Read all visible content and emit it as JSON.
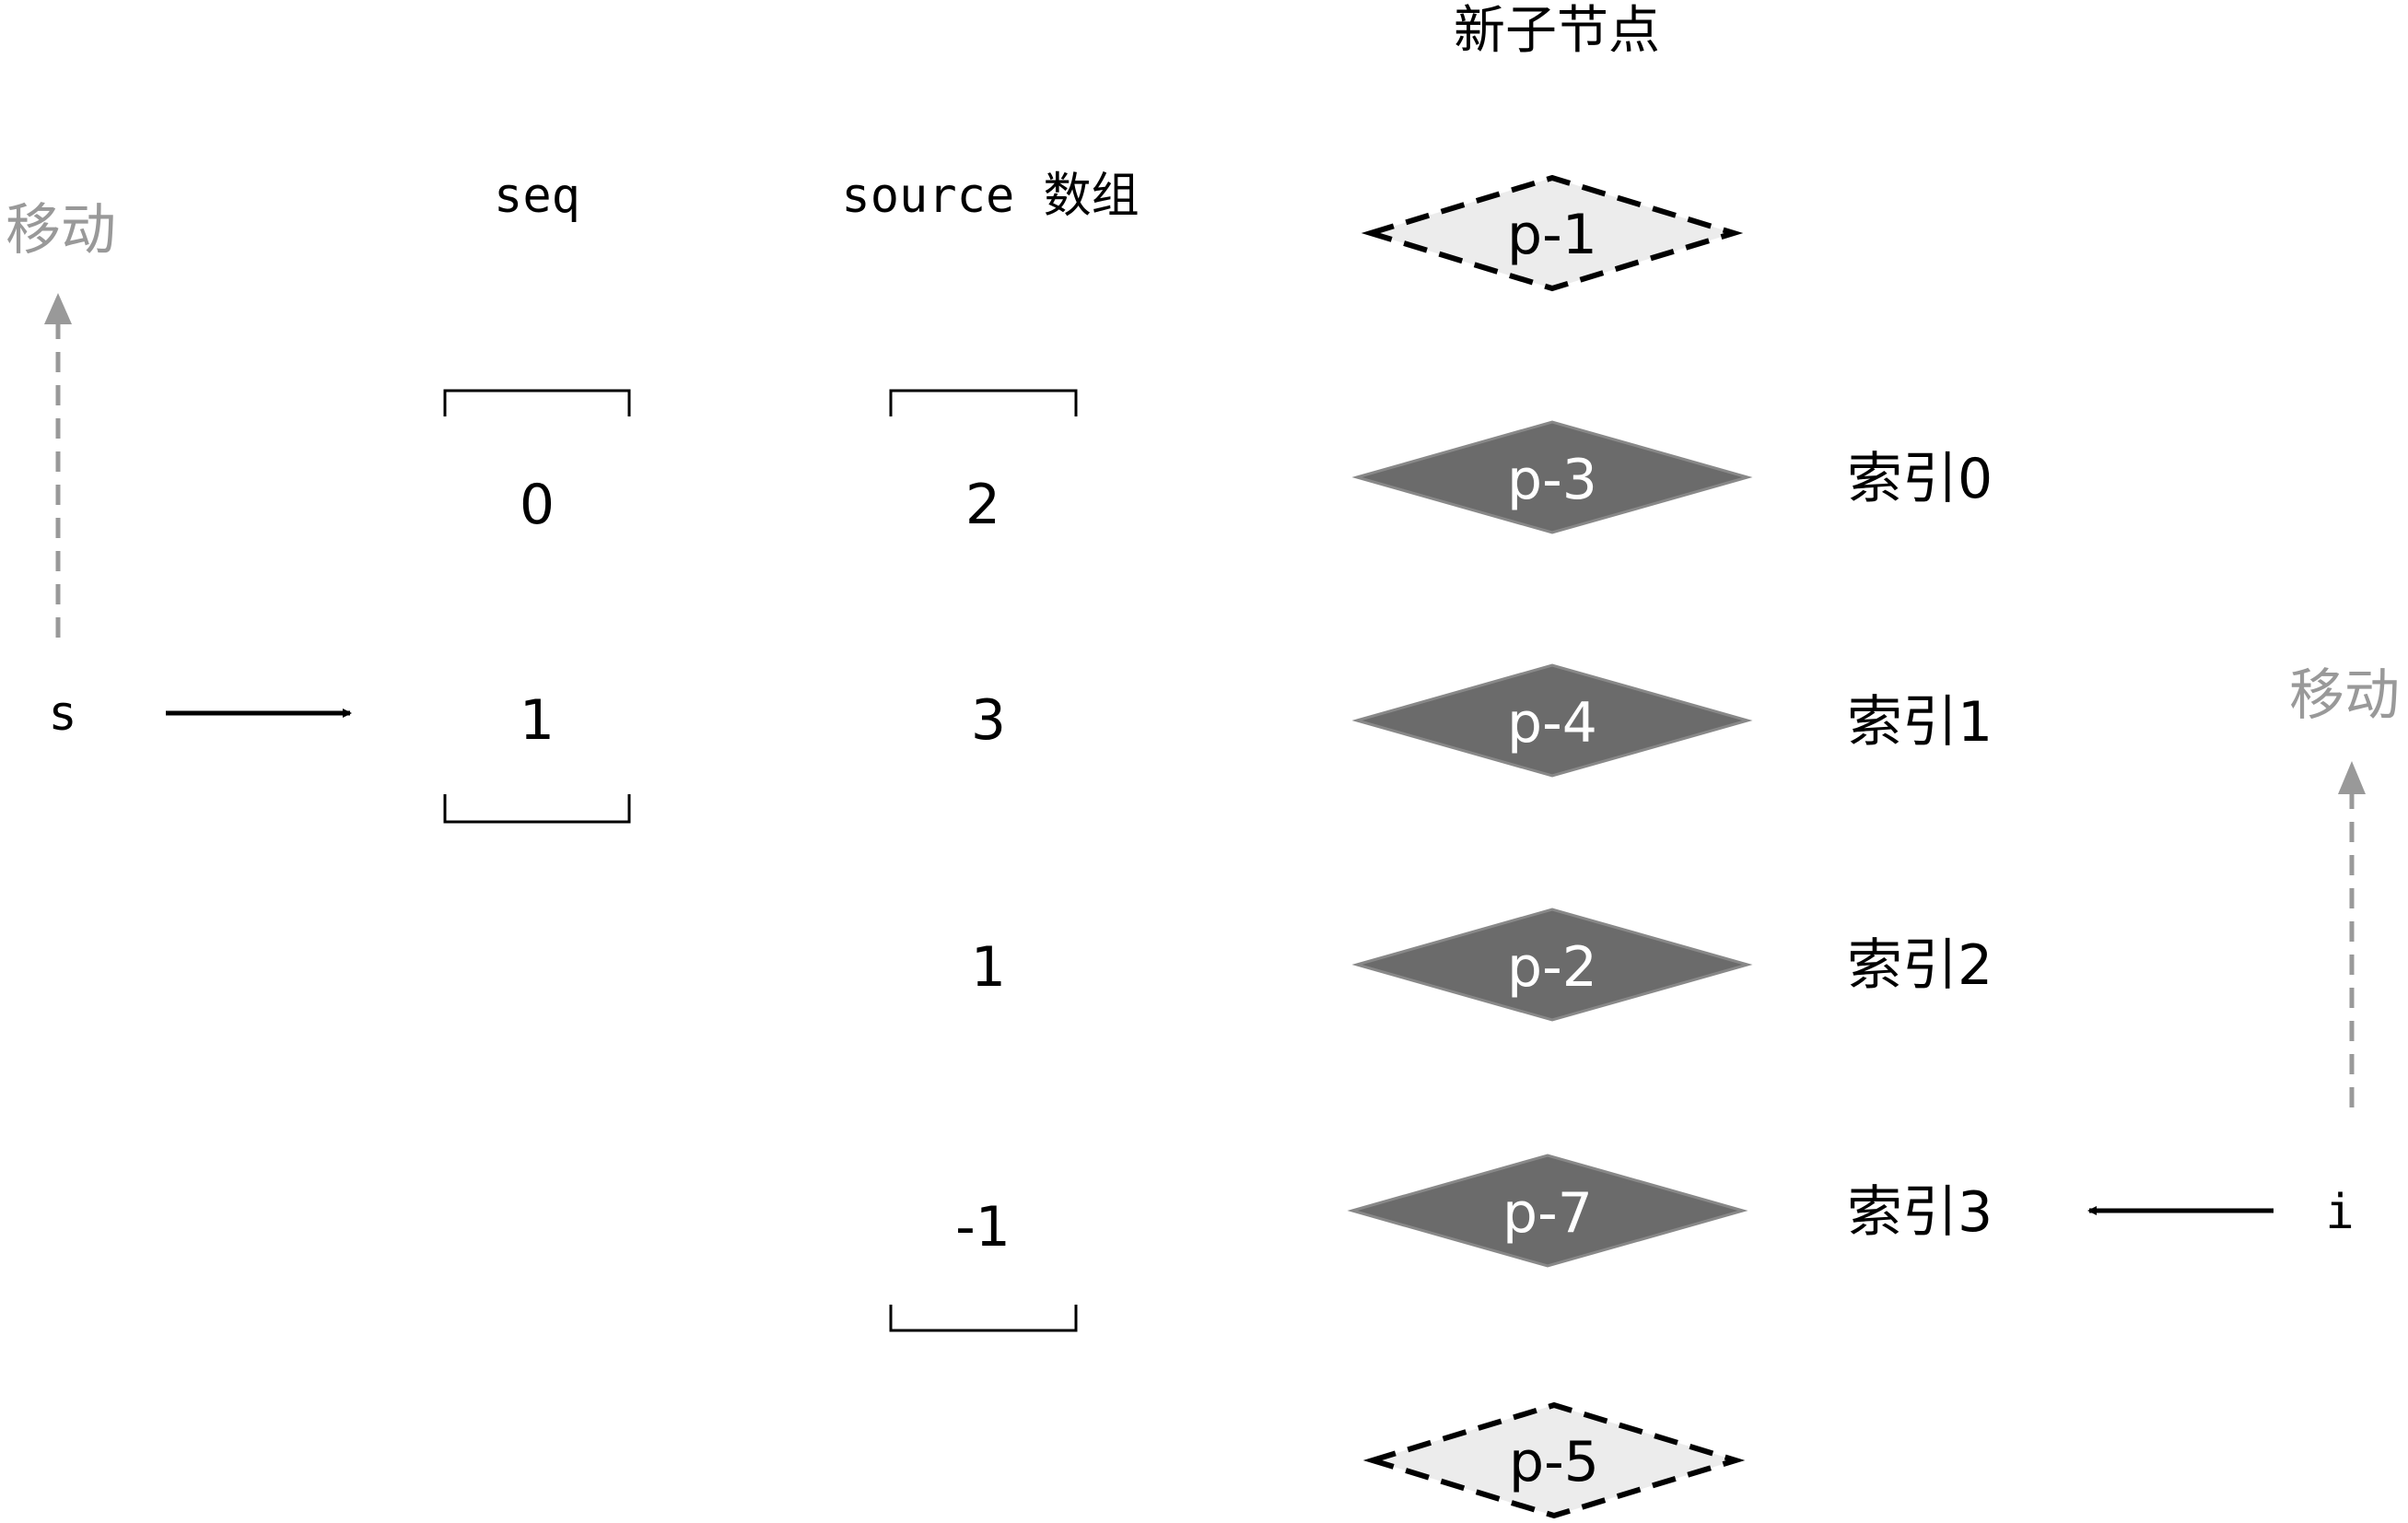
{
  "title": "新子节点",
  "seq": {
    "header": "seq",
    "values": [
      "0",
      "1"
    ]
  },
  "source": {
    "header": "source 数组",
    "values": [
      "2",
      "3",
      "1",
      "-1"
    ]
  },
  "nodes": [
    {
      "label": "p-1",
      "style": "dashed"
    },
    {
      "label": "p-3",
      "style": "solid"
    },
    {
      "label": "p-4",
      "style": "solid"
    },
    {
      "label": "p-2",
      "style": "solid"
    },
    {
      "label": "p-7",
      "style": "solid"
    },
    {
      "label": "p-5",
      "style": "dashed"
    }
  ],
  "indices": [
    "索引0",
    "索引1",
    "索引2",
    "索引3"
  ],
  "pointers": {
    "s": "s",
    "i": "i",
    "move_left": "移动",
    "move_right": "移动"
  },
  "colors": {
    "solid_fill": "#6b6b6b",
    "dashed_fill": "#ececec",
    "gray": "#999999",
    "ink": "#000000",
    "node_text": "#ffffff"
  }
}
